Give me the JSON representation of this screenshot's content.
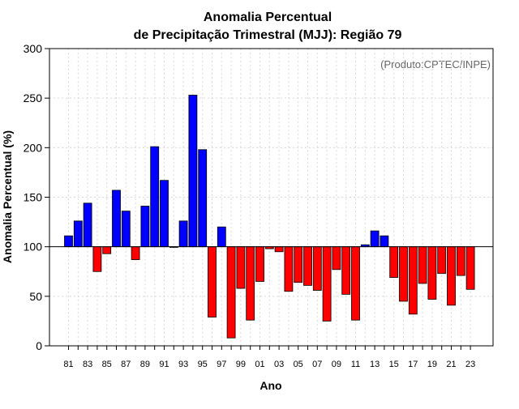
{
  "chart_data": {
    "type": "bar",
    "title": "Anomalia Percentual",
    "subtitle": "de Precipitação Trimestral (MJJ): Região 79",
    "xlabel": "Ano",
    "ylabel": "Anomalia Percentual (%)",
    "source_note": "(Produto:CPTEC/INPE)",
    "ylim": [
      0,
      300
    ],
    "yticks": [
      0,
      50,
      100,
      150,
      200,
      250,
      300
    ],
    "baseline": 100,
    "grid": true,
    "colors": {
      "above": "#0000ff",
      "below": "#ff0000",
      "outline": "#000000",
      "grid": "#d8d8d8"
    },
    "categories": [
      "81",
      "82",
      "83",
      "84",
      "85",
      "86",
      "87",
      "88",
      "89",
      "90",
      "91",
      "92",
      "93",
      "94",
      "95",
      "96",
      "97",
      "98",
      "99",
      "00",
      "01",
      "02",
      "03",
      "04",
      "05",
      "06",
      "07",
      "08",
      "09",
      "10",
      "11",
      "12",
      "13",
      "14",
      "15",
      "16",
      "17",
      "18",
      "19",
      "20",
      "21",
      "22",
      "23"
    ],
    "tick_labels": [
      "81",
      "83",
      "85",
      "87",
      "89",
      "91",
      "93",
      "95",
      "97",
      "99",
      "01",
      "03",
      "05",
      "07",
      "09",
      "11",
      "13",
      "15",
      "17",
      "19",
      "21",
      "23"
    ],
    "values": [
      111,
      126,
      144,
      75,
      93,
      157,
      136,
      87,
      141,
      201,
      167,
      100,
      126,
      253,
      198,
      29,
      120,
      8,
      58,
      26,
      65,
      98,
      95,
      55,
      64,
      61,
      56,
      25,
      77,
      52,
      26,
      102,
      116,
      111,
      69,
      45,
      32,
      63,
      47,
      73,
      41,
      71,
      57
    ]
  }
}
